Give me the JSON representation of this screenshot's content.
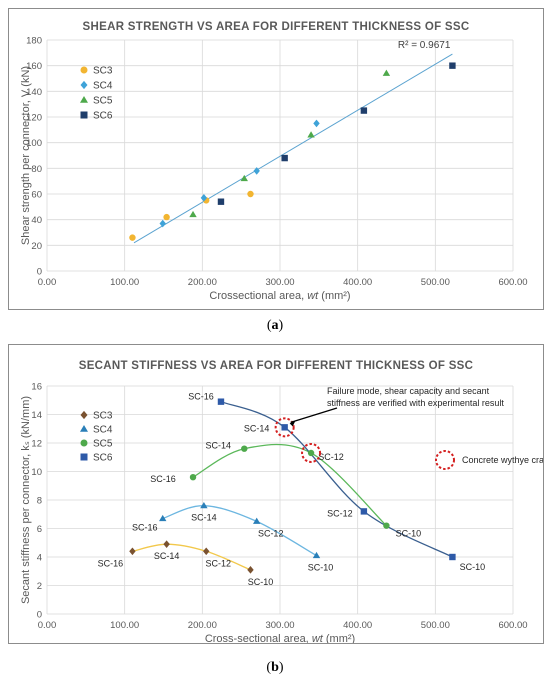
{
  "captions": {
    "a_left": "(",
    "a_letter": "a",
    "a_right": ")",
    "b_left": "(",
    "b_letter": "b",
    "b_right": ")"
  },
  "chart_data": [
    {
      "type": "scatter",
      "title": "SHEAR STRENGTH VS AREA FOR DIFFERENT THICKNESS OF SSC",
      "xlabel_main": "Crossectional area,",
      "xlabel_var": "wt",
      "xlabel_unit": " (mm²)",
      "ylabel": "Shear strength per connector, V (kN)",
      "xlim": [
        0,
        600
      ],
      "ylim": [
        0,
        180
      ],
      "xticks": [
        "0.00",
        "100.00",
        "200.00",
        "300.00",
        "400.00",
        "500.00",
        "600.00"
      ],
      "yticks": [
        "0",
        "20",
        "40",
        "60",
        "80",
        "100",
        "120",
        "140",
        "160",
        "180"
      ],
      "grid": true,
      "legend_position": "top-left",
      "trendline": {
        "x": [
          112,
          522
        ],
        "y": [
          22,
          169
        ],
        "label": "R² = 0.9671",
        "color": "#5ba3d0"
      },
      "series": [
        {
          "name": "SC3",
          "marker": "circle",
          "color": "#f2b531",
          "x": [
            110,
            154,
            205,
            262
          ],
          "y": [
            26,
            42,
            55,
            60
          ]
        },
        {
          "name": "SC4",
          "marker": "diamond",
          "color": "#3fa3d8",
          "x": [
            149,
            202,
            270,
            347
          ],
          "y": [
            37,
            57,
            78,
            115
          ]
        },
        {
          "name": "SC5",
          "marker": "triangle",
          "color": "#4ea94b",
          "x": [
            188,
            254,
            340,
            437
          ],
          "y": [
            44,
            72,
            106,
            154
          ]
        },
        {
          "name": "SC6",
          "marker": "square",
          "color": "#1f3e6b",
          "x": [
            224,
            306,
            408,
            522
          ],
          "y": [
            54,
            88,
            125,
            160
          ]
        }
      ]
    },
    {
      "type": "line",
      "title": "SECANT STIFFNESS VS AREA FOR DIFFERENT THICKNESS OF SSC",
      "xlabel_main": "Cross-sectional area,",
      "xlabel_var": "wt",
      "xlabel_unit": " (mm²)",
      "ylabel": "Secant stiffness per connector, kₛ (kN/mm)",
      "xlim": [
        0,
        600
      ],
      "ylim": [
        0,
        16
      ],
      "xticks": [
        "0.00",
        "100.00",
        "200.00",
        "300.00",
        "400.00",
        "500.00",
        "600.00"
      ],
      "yticks": [
        "0",
        "2",
        "4",
        "6",
        "8",
        "10",
        "12",
        "14",
        "16"
      ],
      "grid": true,
      "legend_position": "top-left",
      "series": [
        {
          "name": "SC3",
          "marker": "diamond",
          "color": "#7a5230",
          "line_color": "#f2c84b",
          "x": [
            110,
            154,
            205,
            262
          ],
          "y": [
            4.4,
            4.9,
            4.4,
            3.1
          ],
          "labels": [
            "SC-16",
            "SC-14",
            "SC-12",
            "SC-10"
          ]
        },
        {
          "name": "SC4",
          "marker": "triangle",
          "color": "#2a7fb8",
          "line_color": "#6cb6e0",
          "x": [
            149,
            202,
            270,
            347
          ],
          "y": [
            6.7,
            7.6,
            6.5,
            4.1
          ],
          "labels": [
            "SC-16",
            "SC-14",
            "SC-12",
            "SC-10"
          ]
        },
        {
          "name": "SC5",
          "marker": "circle",
          "color": "#4ea94b",
          "line_color": "#5bb85a",
          "x": [
            188,
            254,
            340,
            437
          ],
          "y": [
            9.6,
            11.6,
            11.3,
            6.2
          ],
          "labels": [
            "SC-16",
            "SC-14",
            "SC-12",
            "SC-10"
          ]
        },
        {
          "name": "SC6",
          "marker": "square",
          "color": "#2e5aa8",
          "line_color": "#3a5f8f",
          "x": [
            224,
            306,
            408,
            522
          ],
          "y": [
            14.9,
            13.1,
            7.2,
            4.0
          ],
          "labels": [
            "SC-16",
            "SC-14",
            "SC-12",
            "SC-10"
          ]
        }
      ],
      "annotations": [
        {
          "text": "Failure mode, shear capacity and secant",
          "text2": "stiffness are verified with experimental result"
        },
        {
          "text": "Concrete wythye crack"
        }
      ]
    }
  ]
}
